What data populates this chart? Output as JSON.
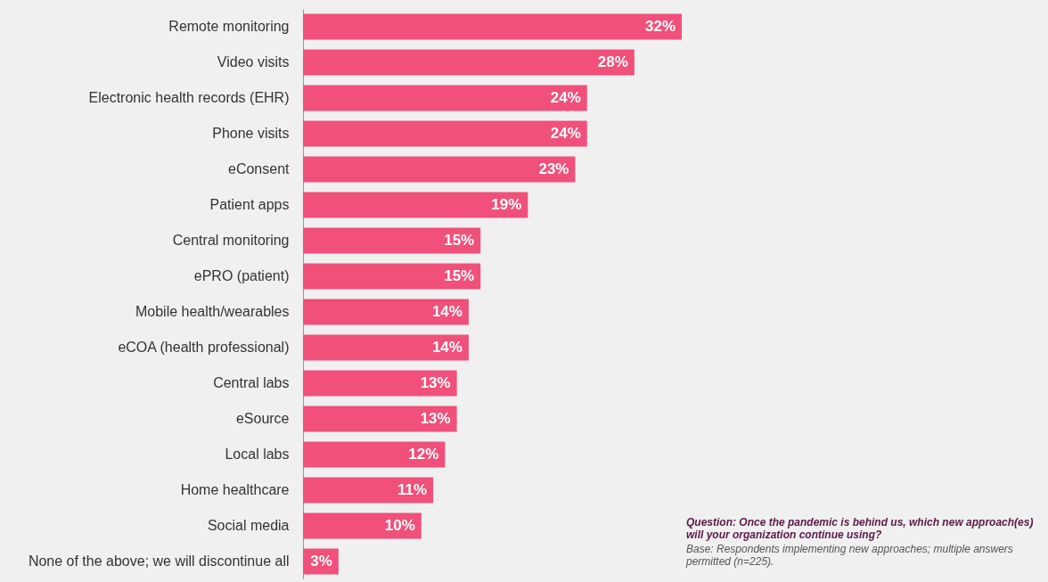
{
  "chart_data": {
    "type": "bar",
    "orientation": "horizontal",
    "categories": [
      "Remote monitoring",
      "Video visits",
      "Electronic health records (EHR)",
      "Phone visits",
      "eConsent",
      "Patient apps",
      "Central monitoring",
      "ePRO (patient)",
      "Mobile health/wearables",
      "eCOA (health professional)",
      "Central labs",
      "eSource",
      "Local labs",
      "Home healthcare",
      "Social media",
      "None of the above; we will discontinue all"
    ],
    "values": [
      32,
      28,
      24,
      24,
      23,
      19,
      15,
      15,
      14,
      14,
      13,
      13,
      12,
      11,
      10,
      3
    ],
    "value_labels": [
      "32%",
      "28%",
      "24%",
      "24%",
      "23%",
      "19%",
      "15%",
      "15%",
      "14%",
      "14%",
      "13%",
      "13%",
      "12%",
      "11%",
      "10%",
      "3%"
    ],
    "color": "#f0507a",
    "annotations": [
      "Question: Once the pandemic is behind us, which new approach(es) will your organization continue using?",
      "Base: Respondents implementing new approaches; multiple answers permitted (n=225)."
    ]
  }
}
